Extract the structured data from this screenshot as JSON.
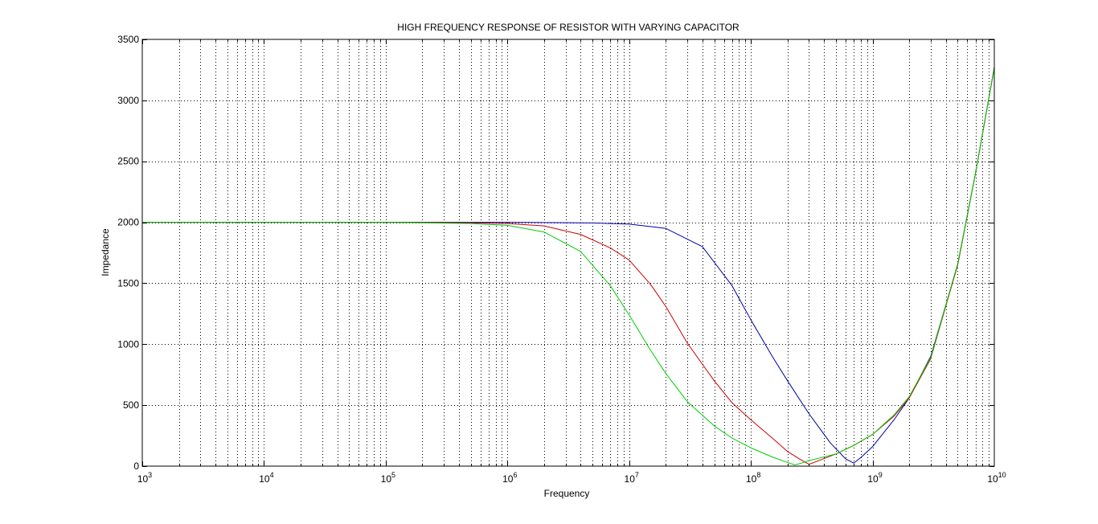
{
  "chart_data": {
    "type": "line",
    "title": "HIGH FREQUENCY RESPONSE OF RESISTOR WITH VARYING CAPACITOR",
    "xlabel": "Frequency",
    "ylabel": "Impedance",
    "xscale": "log",
    "xlim": [
      1000,
      10000000000
    ],
    "ylim": [
      0,
      3500
    ],
    "grid": true,
    "grid_style": "dotted",
    "x_ticks": [
      {
        "base": "10",
        "exp": "3",
        "value": 1000
      },
      {
        "base": "10",
        "exp": "4",
        "value": 10000
      },
      {
        "base": "10",
        "exp": "5",
        "value": 100000
      },
      {
        "base": "10",
        "exp": "6",
        "value": 1000000
      },
      {
        "base": "10",
        "exp": "7",
        "value": 10000000
      },
      {
        "base": "10",
        "exp": "8",
        "value": 100000000
      },
      {
        "base": "10",
        "exp": "9",
        "value": 1000000000
      },
      {
        "base": "10",
        "exp": "10",
        "value": 10000000000
      }
    ],
    "y_ticks": [
      0,
      500,
      1000,
      1500,
      2000,
      2500,
      3000,
      3500
    ],
    "series": [
      {
        "color": "#0000aa",
        "x": [
          1000,
          100000,
          1000000,
          5000000,
          10000000,
          20000000,
          40000000,
          70000000,
          100000000,
          150000000,
          200000000,
          300000000,
          450000000,
          600000000,
          700000000,
          800000000,
          1000000000,
          1500000000,
          2000000000,
          3000000000,
          5000000000,
          7000000000,
          10000000000
        ],
        "y": [
          2000,
          2000,
          2000,
          1995,
          1985,
          1950,
          1800,
          1480,
          1200,
          900,
          700,
          430,
          190,
          60,
          25,
          70,
          160,
          380,
          560,
          900,
          1650,
          2400,
          3270
        ]
      },
      {
        "color": "#cc0000",
        "x": [
          1000,
          100000,
          500000,
          1000000,
          2000000,
          4000000,
          7000000,
          10000000,
          15000000,
          20000000,
          30000000,
          50000000,
          70000000,
          100000000,
          150000000,
          200000000,
          250000000,
          300000000,
          350000000,
          500000000,
          700000000,
          1000000000,
          1500000000,
          2000000000,
          3000000000,
          5000000000,
          7000000000,
          10000000000
        ],
        "y": [
          2000,
          2000,
          1995,
          1990,
          1970,
          1900,
          1790,
          1690,
          1490,
          1310,
          1010,
          700,
          520,
          380,
          230,
          120,
          60,
          15,
          40,
          100,
          170,
          260,
          410,
          560,
          880,
          1650,
          2400,
          3270
        ]
      },
      {
        "color": "#00cc00",
        "x": [
          1000,
          100000,
          500000,
          1000000,
          2000000,
          4000000,
          7000000,
          10000000,
          15000000,
          20000000,
          30000000,
          50000000,
          70000000,
          100000000,
          150000000,
          200000000,
          230000000,
          260000000,
          300000000,
          500000000,
          700000000,
          1000000000,
          1500000000,
          2000000000,
          3000000000,
          5000000000,
          7000000000,
          10000000000
        ],
        "y": [
          2000,
          2000,
          1990,
          1975,
          1920,
          1760,
          1480,
          1240,
          950,
          760,
          530,
          330,
          230,
          150,
          75,
          30,
          10,
          25,
          45,
          100,
          170,
          260,
          420,
          570,
          890,
          1660,
          2400,
          3270
        ]
      }
    ]
  }
}
